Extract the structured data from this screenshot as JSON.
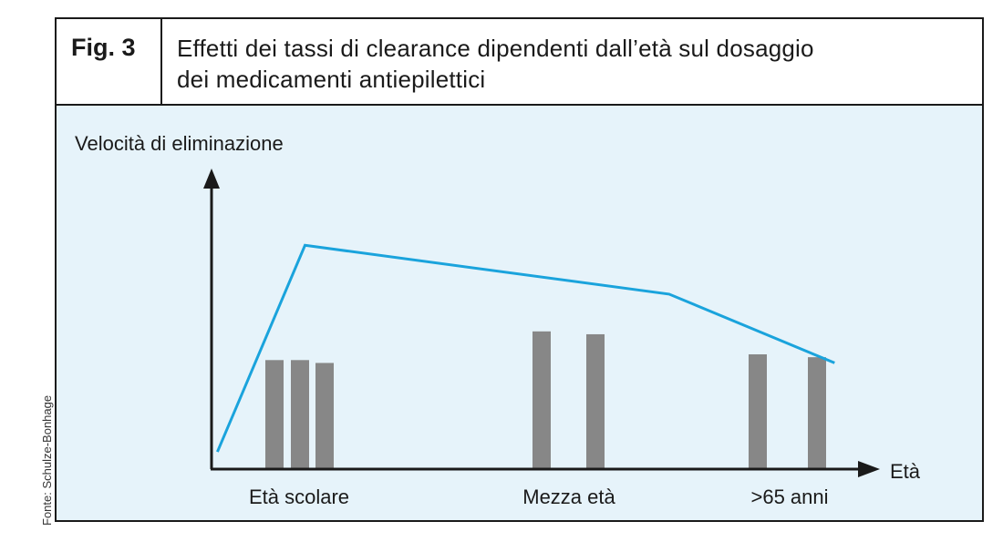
{
  "figure": {
    "label": "Fig. 3",
    "title_line1": "Effetti dei tassi di clearance dipendenti dall’età sul dosaggio",
    "title_line2": "dei medicamenti antiepilettici",
    "source_note": "Fonte: Schulze-Bonhage"
  },
  "colors": {
    "line": "#1aa3dc",
    "bar": "#878787",
    "plot_background": "#e6f3fa",
    "axis": "#1a1a1a"
  },
  "chart_data": {
    "type": "bar",
    "ylabel": "Velocità di eliminazione",
    "xlabel": "Età",
    "categories": [
      "Età scolare",
      "Mezza età",
      ">65 anni"
    ],
    "ylim": [
      0,
      100
    ],
    "bar_groups": [
      {
        "category": "Età scolare",
        "values": [
          38,
          38,
          37
        ]
      },
      {
        "category": "Mezza età",
        "values": [
          48,
          47
        ]
      },
      {
        "category": ">65 anni",
        "values": [
          40,
          39
        ]
      }
    ],
    "line": {
      "points": [
        {
          "x": 0.3,
          "y": 6
        },
        {
          "x": 4.8,
          "y": 78
        },
        {
          "x": 23.5,
          "y": 61
        },
        {
          "x": 32.0,
          "y": 37
        }
      ],
      "xlim": [
        0,
        34
      ]
    },
    "grid": false,
    "legend": "none"
  }
}
